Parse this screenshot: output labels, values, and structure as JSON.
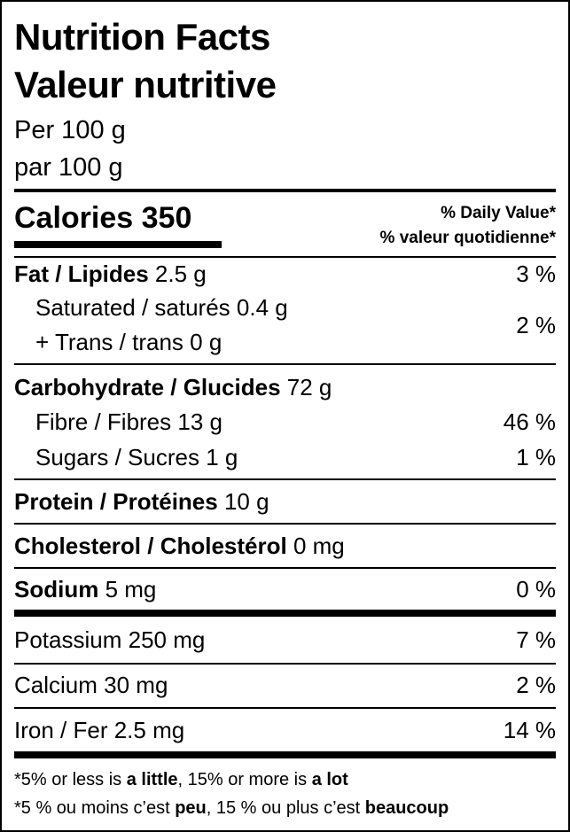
{
  "title": [
    "Nutrition Facts",
    "Valeur nutritive"
  ],
  "serving": [
    "Per 100 g",
    "par 100 g"
  ],
  "calories": {
    "label": "Calories",
    "amount": "350"
  },
  "daily_value_header": [
    "% Daily Value*",
    "% valeur quotidienne*"
  ],
  "fat": {
    "name": "Fat / Lipides",
    "amount": "2.5 g",
    "daily_value": "3 %"
  },
  "saturated_trans": {
    "saturated": {
      "name": "Saturated / saturés",
      "amount": "0.4 g"
    },
    "trans": {
      "name": "+ Trans / trans",
      "amount": "0 g"
    },
    "daily_value": "2 %"
  },
  "carbohydrate": {
    "name": "Carbohydrate / Glucides",
    "amount": "72 g"
  },
  "fibre": {
    "name": "Fibre / Fibres",
    "amount": "13 g",
    "daily_value": "46 %"
  },
  "sugars": {
    "name": "Sugars / Sucres",
    "amount": "1 g",
    "daily_value": "1 %"
  },
  "protein": {
    "name": "Protein / Protéines",
    "amount": "10 g"
  },
  "cholesterol": {
    "name": "Cholesterol / Cholestérol",
    "amount": "0 mg"
  },
  "sodium": {
    "name": "Sodium",
    "amount": "5 mg",
    "daily_value": "0 %"
  },
  "potassium": {
    "name": "Potassium",
    "amount": "250 mg",
    "daily_value": "7 %"
  },
  "calcium": {
    "name": "Calcium",
    "amount": "30 mg",
    "daily_value": "2 %"
  },
  "iron": {
    "name": "Iron / Fer",
    "amount": "2.5 mg",
    "daily_value": "14 %"
  },
  "footnotes": [
    [
      "*5% or less is ",
      "a little",
      ", 15% or more is ",
      "a lot"
    ],
    [
      "*5 % ou moins c’est ",
      "peu",
      ", 15 % ou plus c’est ",
      "beaucoup"
    ]
  ]
}
